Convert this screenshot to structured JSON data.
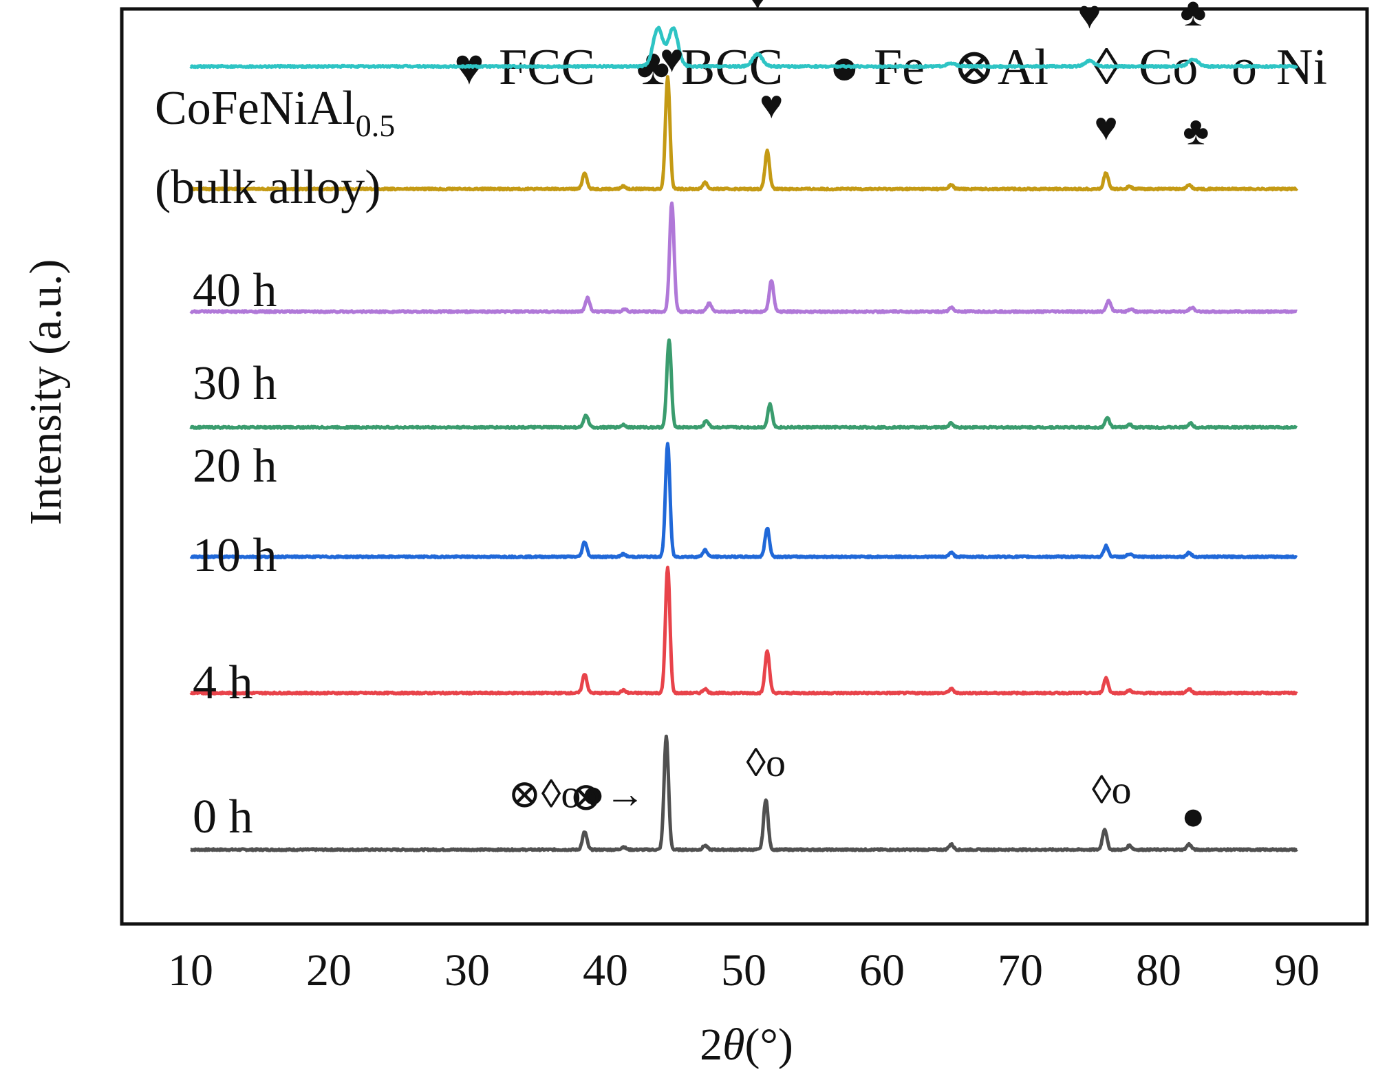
{
  "chart_data": {
    "type": "line",
    "xlabel": "2θ(°)",
    "ylabel": "Intensity (a.u.)",
    "xlim": [
      10,
      90
    ],
    "xticks": [
      "10",
      "20",
      "30",
      "40",
      "50",
      "60",
      "70",
      "80",
      "90"
    ],
    "legend": [
      {
        "symbol": "♥",
        "label": "FCC"
      },
      {
        "symbol": "♣",
        "label": "BCC"
      },
      {
        "symbol": "●",
        "label": "Fe"
      },
      {
        "symbol": "⊗",
        "label": "Al"
      },
      {
        "symbol": "◊",
        "label": "Co"
      },
      {
        "symbol": "o",
        "label": "Ni"
      }
    ],
    "series": [
      {
        "name": "0 h",
        "color": "#505050",
        "offset": 0.0,
        "peaks": [
          [
            38.5,
            0.13
          ],
          [
            41.3,
            0.02
          ],
          [
            44.4,
            0.83
          ],
          [
            47.2,
            0.03
          ],
          [
            51.6,
            0.37
          ],
          [
            65.0,
            0.04
          ],
          [
            76.1,
            0.15
          ],
          [
            77.9,
            0.03
          ],
          [
            82.2,
            0.04
          ]
        ],
        "markers": [
          {
            "x": 37.9,
            "y": 0.31,
            "text": "⊗◊o●→"
          },
          {
            "x": 38.6,
            "y": 0.29,
            "text": "⊗"
          },
          {
            "x": 51.6,
            "y": 0.54,
            "text": "◊o"
          },
          {
            "x": 76.6,
            "y": 0.34,
            "text": "◊o"
          },
          {
            "x": 82.5,
            "y": 0.15,
            "text": "●"
          }
        ]
      },
      {
        "name": "4 h",
        "color": "#e8434a",
        "offset": 1.15,
        "peaks": [
          [
            38.5,
            0.14
          ],
          [
            41.3,
            0.02
          ],
          [
            44.5,
            0.92
          ],
          [
            47.2,
            0.03
          ],
          [
            51.7,
            0.31
          ],
          [
            65.0,
            0.03
          ],
          [
            76.2,
            0.11
          ],
          [
            77.9,
            0.02
          ],
          [
            82.2,
            0.03
          ]
        ],
        "markers": []
      },
      {
        "name": "10 h",
        "color": "#2068d8",
        "offset": 2.15,
        "peaks": [
          [
            38.5,
            0.11
          ],
          [
            41.3,
            0.02
          ],
          [
            44.5,
            0.83
          ],
          [
            47.2,
            0.05
          ],
          [
            51.7,
            0.21
          ],
          [
            65.0,
            0.03
          ],
          [
            76.2,
            0.08
          ],
          [
            77.9,
            0.02
          ],
          [
            82.2,
            0.03
          ]
        ],
        "markers": []
      },
      {
        "name": "20 h",
        "color": "#3a9c6e",
        "offset": 3.1,
        "peaks": [
          [
            38.6,
            0.09
          ],
          [
            41.3,
            0.02
          ],
          [
            44.6,
            0.64
          ],
          [
            47.3,
            0.05
          ],
          [
            51.9,
            0.17
          ],
          [
            65.0,
            0.03
          ],
          [
            76.3,
            0.07
          ],
          [
            77.9,
            0.02
          ],
          [
            82.3,
            0.03
          ]
        ],
        "markers": []
      },
      {
        "name": "30 h",
        "color": "#b078d8",
        "offset": 3.95,
        "peaks": [
          [
            38.7,
            0.1
          ],
          [
            41.4,
            0.02
          ],
          [
            44.8,
            0.8
          ],
          [
            47.5,
            0.06
          ],
          [
            52.0,
            0.23
          ],
          [
            65.0,
            0.03
          ],
          [
            76.4,
            0.08
          ],
          [
            78.0,
            0.02
          ],
          [
            82.4,
            0.03
          ]
        ],
        "markers": []
      },
      {
        "name": "40 h",
        "color": "#c49a14",
        "offset": 4.85,
        "peaks": [
          [
            38.5,
            0.12
          ],
          [
            41.3,
            0.02
          ],
          [
            44.5,
            0.82
          ],
          [
            47.2,
            0.05
          ],
          [
            51.7,
            0.28
          ],
          [
            65.0,
            0.03
          ],
          [
            76.2,
            0.12
          ],
          [
            77.9,
            0.02
          ],
          [
            82.2,
            0.03
          ]
        ],
        "markers": [
          {
            "x": 44.8,
            "y": 0.86,
            "text": "♥"
          },
          {
            "x": 52.0,
            "y": 0.52,
            "text": "♥"
          },
          {
            "x": 76.2,
            "y": 0.36,
            "text": "♥"
          },
          {
            "x": 82.7,
            "y": 0.33,
            "text": "♣"
          }
        ]
      },
      {
        "name": "CoFeNiAl0.5 (bulk alloy)",
        "label_main": "CoFeNiAl",
        "label_sub": "0.5",
        "label_line2": "(bulk alloy)",
        "color": "#2ec4c4",
        "offset": 5.75,
        "peaks": [
          [
            43.8,
            0.28
          ],
          [
            44.9,
            0.28
          ],
          [
            51.0,
            0.09
          ],
          [
            65.0,
            0.02
          ],
          [
            75.0,
            0.04
          ],
          [
            82.5,
            0.05
          ]
        ],
        "markers": [
          {
            "x": 44.0,
            "y": 0.63,
            "text": "♥"
          },
          {
            "x": 45.5,
            "y": 0.63,
            "text": "♣"
          },
          {
            "x": 51.0,
            "y": 0.42,
            "text": "♥"
          },
          {
            "x": 75.0,
            "y": 0.28,
            "text": "♥"
          },
          {
            "x": 82.5,
            "y": 0.3,
            "text": "♣"
          }
        ]
      }
    ]
  }
}
